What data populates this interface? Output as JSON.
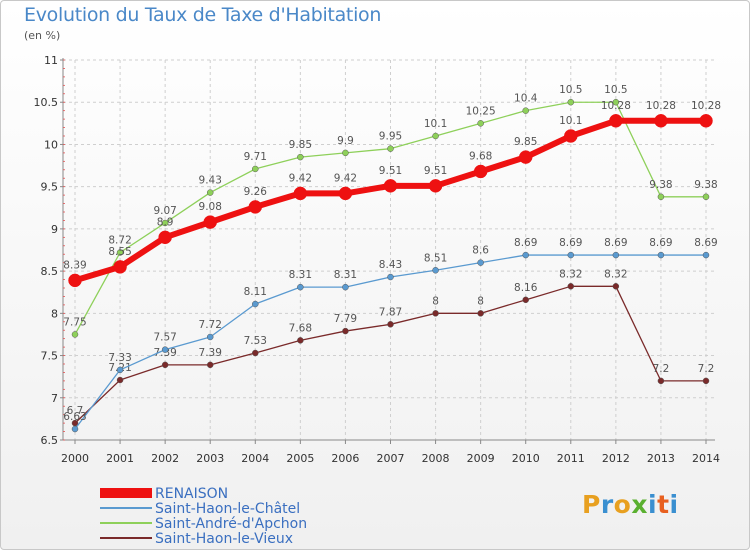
{
  "title": "Evolution du Taux de Taxe d'Habitation",
  "unit": "(en %)",
  "logo": {
    "letters": [
      "P",
      "r",
      "o",
      "x",
      "i",
      "t",
      "i"
    ],
    "colors": [
      "#e8a020",
      "#3a8fd0",
      "#e8a020",
      "#5ab030",
      "#3a8fd0",
      "#e86020",
      "#3a8fd0"
    ]
  },
  "chart_data": {
    "type": "line",
    "title": "Evolution du Taux de Taxe d'Habitation",
    "ylabel": "(en %)",
    "xlabel": "",
    "ylim": [
      6.5,
      11
    ],
    "yticks": [
      {
        "v": 6.5,
        "label": "6.5"
      },
      {
        "v": 7,
        "label": "7"
      },
      {
        "v": 7.5,
        "label": "7.5"
      },
      {
        "v": 8,
        "label": "8"
      },
      {
        "v": 8.5,
        "label": "8.5"
      },
      {
        "v": 9,
        "label": "9"
      },
      {
        "v": 9.5,
        "label": "9.5"
      },
      {
        "v": 10,
        "label": "10"
      },
      {
        "v": 10.5,
        "label": "10.5"
      },
      {
        "v": 11,
        "label": "11"
      }
    ],
    "x": [
      "2000",
      "2001",
      "2002",
      "2003",
      "2004",
      "2005",
      "2006",
      "2007",
      "2008",
      "2009",
      "2010",
      "2011",
      "2012",
      "2013",
      "2014"
    ],
    "legend_position": "bottom-left",
    "series": [
      {
        "name": "Saint-Haon-le-Vieux",
        "color": "#7a2a2a",
        "width": 1.3,
        "marker": 3,
        "values": [
          6.7,
          7.21,
          7.39,
          7.39,
          7.53,
          7.68,
          7.79,
          7.87,
          8,
          8,
          8.16,
          8.32,
          8.32,
          7.2,
          7.2
        ],
        "labels": [
          "6.7",
          "7.21",
          "7.39",
          "7.39",
          "7.53",
          "7.68",
          "7.79",
          "7.87",
          "8",
          "8",
          "8.16",
          "8.32",
          "8.32",
          "7.2",
          "7.2"
        ]
      },
      {
        "name": "Saint-Haon-le-Châtel",
        "color": "#5a9ad0",
        "width": 1.3,
        "marker": 3,
        "values": [
          6.63,
          7.33,
          7.57,
          7.72,
          8.11,
          8.31,
          8.31,
          8.43,
          8.51,
          8.6,
          8.69,
          8.69,
          8.69,
          8.69,
          8.69
        ],
        "labels": [
          "6.63",
          "7.33",
          "7.57",
          "7.72",
          "8.11",
          "8.31",
          "8.31",
          "8.43",
          "8.51",
          "8.6",
          "8.69",
          "8.69",
          "8.69",
          "8.69",
          "8.69"
        ]
      },
      {
        "name": "Saint-André-d'Apchon",
        "color": "#8ed05a",
        "width": 1.3,
        "marker": 3,
        "values": [
          7.75,
          8.72,
          9.07,
          9.43,
          9.71,
          9.85,
          9.9,
          9.95,
          10.1,
          10.25,
          10.4,
          10.5,
          10.5,
          9.38,
          9.38
        ],
        "labels": [
          "7.75",
          "8.72",
          "9.07",
          "9.43",
          "9.71",
          "9.85",
          "9.9",
          "9.95",
          "10.1",
          "10.25",
          "10.4",
          "10.5",
          "10.5",
          "9.38",
          "9.38"
        ]
      },
      {
        "name": "RENAISON",
        "color": "#ee1111",
        "width": 6,
        "marker": 6.5,
        "values": [
          8.39,
          8.55,
          8.9,
          9.08,
          9.26,
          9.42,
          9.42,
          9.51,
          9.51,
          9.68,
          9.85,
          10.1,
          10.28,
          10.28,
          10.28
        ],
        "labels": [
          "8.39",
          "8.55",
          "8.9",
          "9.08",
          "9.26",
          "9.42",
          "9.42",
          "9.51",
          "9.51",
          "9.68",
          "9.85",
          "10.1",
          "10.28",
          "10.28",
          "10.28"
        ]
      }
    ],
    "legend": [
      {
        "name": "RENAISON",
        "color": "#ee1111",
        "width": 10
      },
      {
        "name": "Saint-Haon-le-Châtel",
        "color": "#5a9ad0",
        "width": 2
      },
      {
        "name": "Saint-André-d'Apchon",
        "color": "#8ed05a",
        "width": 2
      },
      {
        "name": "Saint-Haon-le-Vieux",
        "color": "#7a2a2a",
        "width": 2
      }
    ]
  }
}
